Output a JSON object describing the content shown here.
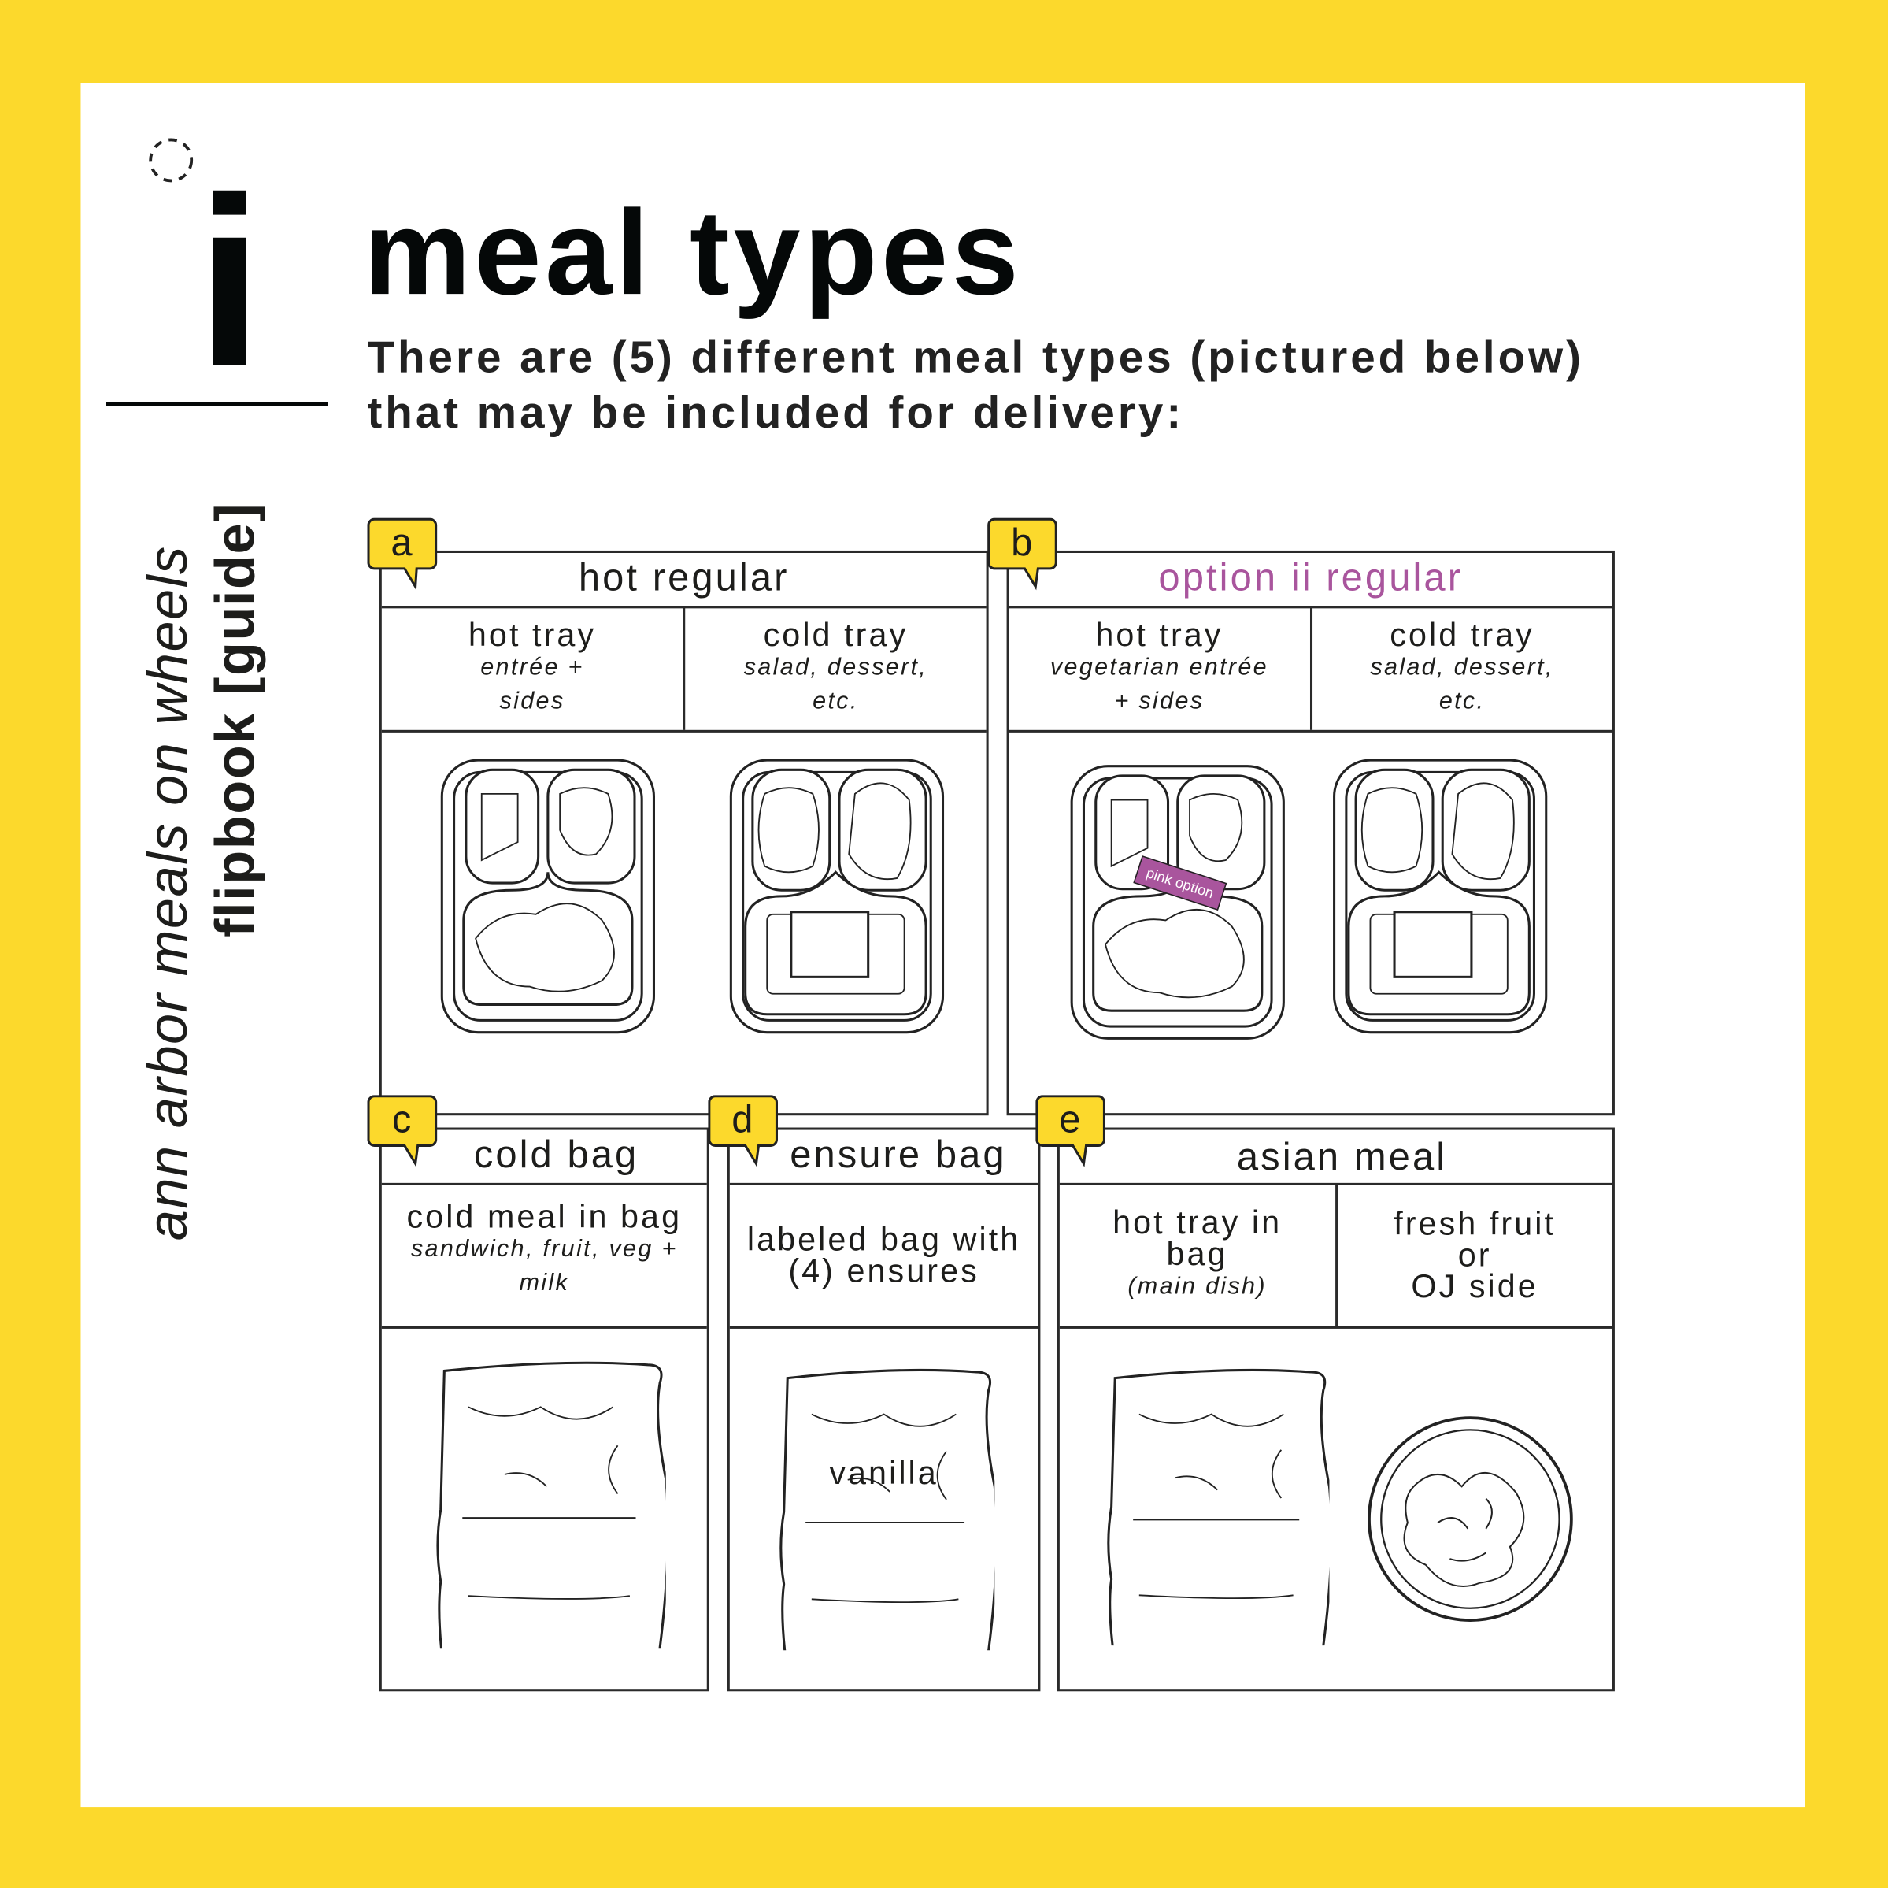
{
  "colors": {
    "background": "#FCD92C",
    "accent_purple": "#A9559D",
    "badge": "#FCD92C"
  },
  "chapter": {
    "numeral": "i",
    "icon": "dashed-circle-icon"
  },
  "sidebar": {
    "org": "ann arbor meals on wheels",
    "book": "flipbook [guide]"
  },
  "title": "meal types",
  "intro": {
    "line1": "There are (5) different meal types (pictured below)",
    "line2": "that may be included for delivery:"
  },
  "panels": [
    {
      "badge": "a",
      "title": "hot regular",
      "cells": [
        {
          "title": "hot tray",
          "sub1": "entrée +",
          "sub2": "sides"
        },
        {
          "title": "cold tray",
          "sub1": "salad, dessert,",
          "sub2": "etc."
        }
      ]
    },
    {
      "badge": "b",
      "title": "option ii regular",
      "cells": [
        {
          "title": "hot tray",
          "sub1": "vegetarian entrée",
          "sub2": "+ sides"
        },
        {
          "title": "cold tray",
          "sub1": "salad, dessert,",
          "sub2": "etc."
        }
      ],
      "tag": "pink option"
    },
    {
      "badge": "c",
      "title": "cold bag",
      "cells": [
        {
          "title": "cold meal in bag",
          "sub1": "sandwich, fruit, veg +",
          "sub2": "milk"
        }
      ]
    },
    {
      "badge": "d",
      "title": "ensure bag",
      "cells": [
        {
          "title1": "labeled bag with",
          "title2": "(4) ensures"
        }
      ],
      "bag_label": "vanilla"
    },
    {
      "badge": "e",
      "title": "asian meal",
      "cells": [
        {
          "title1": "hot tray in",
          "title2": "bag",
          "sub1": "(main dish)"
        },
        {
          "title1": "fresh fruit",
          "title2": "or",
          "title3": "OJ side"
        }
      ]
    }
  ]
}
